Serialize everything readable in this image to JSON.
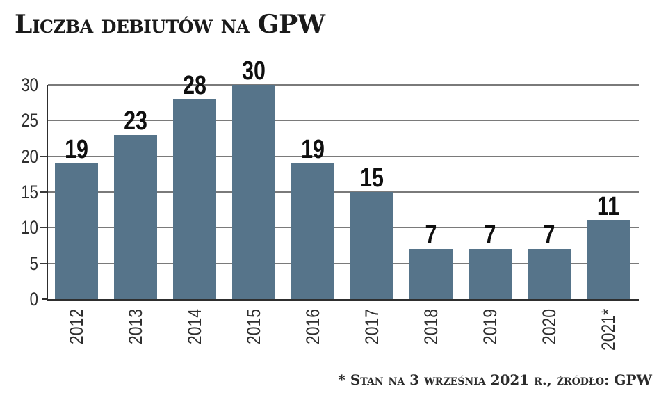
{
  "title": "Liczba debiutów na GPW",
  "footnote": "* Stan na 3 września 2021 r., źródło: GPW",
  "chart_data": {
    "type": "bar",
    "title": "Liczba debiutów na GPW",
    "categories": [
      "2012",
      "2013",
      "2014",
      "2015",
      "2016",
      "2017",
      "2018",
      "2019",
      "2020",
      "2021*"
    ],
    "values": [
      19,
      23,
      28,
      30,
      19,
      15,
      7,
      7,
      7,
      11
    ],
    "yticks": [
      0,
      5,
      10,
      15,
      20,
      25,
      30
    ],
    "ylim": [
      0,
      30
    ],
    "xlabel": "",
    "ylabel": "",
    "grid": "horizontal",
    "legend": "none",
    "value_labels": true,
    "bar_color": "#56748a",
    "axis_color": "#2e2e2e",
    "grid_color": "#7a7a7a",
    "value_label_color": "#0f0f0f",
    "tick_label_color": "#2f2f2f"
  }
}
